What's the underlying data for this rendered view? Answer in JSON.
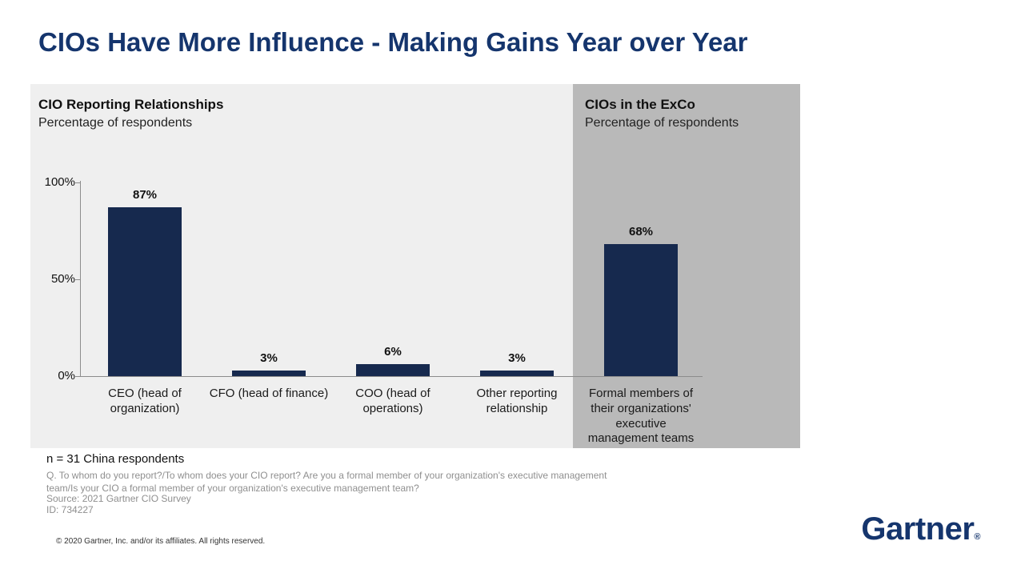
{
  "page": {
    "title": "CIOs Have More Influence - Making Gains Year over Year",
    "copyright": "© 2020 Gartner, Inc. and/or its affiliates. All rights reserved.",
    "logo": "Gartner",
    "logo_mark": "®"
  },
  "panels": {
    "left": {
      "title": "CIO Reporting Relationships",
      "subtitle": "Percentage of respondents"
    },
    "right": {
      "title": "CIOs in the ExCo",
      "subtitle": "Percentage of respondents"
    }
  },
  "notes": {
    "sample": "n = 31 China respondents",
    "question": "Q. To whom do you report?/To whom does your CIO report? Are you a formal member of your organization's executive management team/Is your CIO a formal member of your organization's executive management team?",
    "source": "Source: 2021 Gartner CIO Survey",
    "id_line": "ID: 734227"
  },
  "chart_data": {
    "type": "bar",
    "title": "CIO Reporting Relationships / CIOs in the ExCo",
    "subtitle": "Percentage of respondents",
    "categories": [
      "CEO (head of organization)",
      "CFO (head of finance)",
      "COO (head of operations)",
      "Other reporting relationship",
      "Formal members of their organizations' executive management teams"
    ],
    "values": [
      87,
      3,
      6,
      3,
      68
    ],
    "data_labels": [
      "87%",
      "3%",
      "6%",
      "3%",
      "68%"
    ],
    "panel_of_bar": [
      "left",
      "left",
      "left",
      "left",
      "right"
    ],
    "y_ticks": [
      {
        "label": "100%",
        "value": 100
      },
      {
        "label": "50%",
        "value": 50
      },
      {
        "label": "0%",
        "value": 0
      }
    ],
    "ylim": [
      0,
      100
    ],
    "grid": false,
    "legend": "none",
    "bar_color": "#16294e"
  },
  "colors": {
    "title": "#15356d",
    "left_panel_bg": "#efefef",
    "right_panel_bg": "#b9b9b9",
    "bar": "#16294e",
    "axis": "#8c8c8c"
  }
}
